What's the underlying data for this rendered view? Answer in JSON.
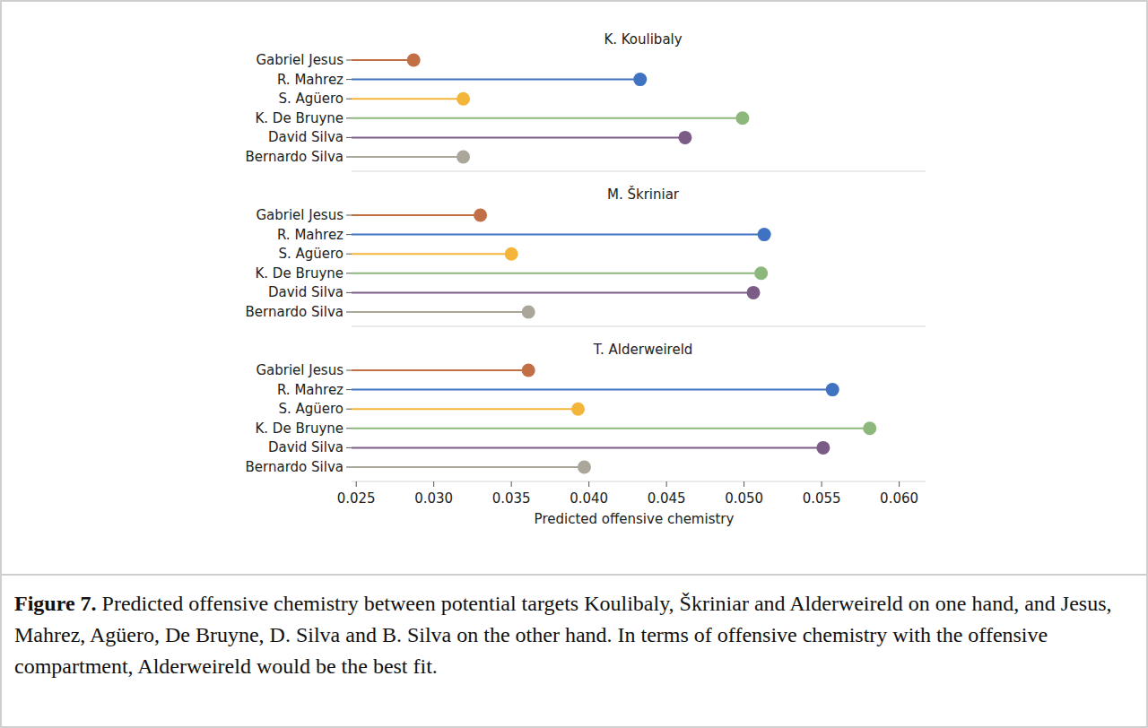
{
  "chart_data": [
    {
      "type": "lollipop",
      "title": "K. Koulibaly",
      "orientation": "horizontal",
      "categories": [
        "Gabriel Jesus",
        "R. Mahrez",
        "S. Agüero",
        "K. De Bruyne",
        "David Silva",
        "Bernardo Silva"
      ],
      "values": [
        0.0287,
        0.0433,
        0.0319,
        0.0499,
        0.0462,
        0.0319
      ],
      "colors": [
        "#c06f47",
        "#3f72c0",
        "#f3b63a",
        "#8cb87c",
        "#7b5c86",
        "#aaa699"
      ],
      "xlim": [
        0.0247,
        0.0617
      ],
      "tick_labels": "y"
    },
    {
      "type": "lollipop",
      "title": "M. Škriniar",
      "orientation": "horizontal",
      "categories": [
        "Gabriel Jesus",
        "R. Mahrez",
        "S. Agüero",
        "K. De Bruyne",
        "David Silva",
        "Bernardo Silva"
      ],
      "values": [
        0.033,
        0.0513,
        0.035,
        0.0511,
        0.0506,
        0.0361
      ],
      "colors": [
        "#c06f47",
        "#3f72c0",
        "#f3b63a",
        "#8cb87c",
        "#7b5c86",
        "#aaa699"
      ],
      "xlim": [
        0.0247,
        0.0617
      ],
      "tick_labels": "y"
    },
    {
      "type": "lollipop",
      "title": "T. Alderweireld",
      "orientation": "horizontal",
      "categories": [
        "Gabriel Jesus",
        "R. Mahrez",
        "S. Agüero",
        "K. De Bruyne",
        "David Silva",
        "Bernardo Silva"
      ],
      "values": [
        0.0361,
        0.0557,
        0.0393,
        0.0581,
        0.0551,
        0.0397
      ],
      "colors": [
        "#c06f47",
        "#3f72c0",
        "#f3b63a",
        "#8cb87c",
        "#7b5c86",
        "#aaa699"
      ],
      "xlim": [
        0.0247,
        0.0617
      ],
      "xticks": [
        0.025,
        {
          "value": 0.03,
          "label": "0.030"
        },
        0.035,
        {
          "value": 0.04,
          "label": "0.040"
        },
        0.045,
        {
          "value": 0.05,
          "label": "0.050"
        },
        0.055,
        {
          "value": 0.06,
          "label": "0.060"
        }
      ],
      "xlabel": "Predicted offensive chemistry"
    }
  ],
  "caption": {
    "label": "Figure 7.",
    "text": "Predicted offensive chemistry between potential targets Koulibaly, Škriniar and Alderweireld on one hand, and Jesus, Mahrez, Agüero, De Bruyne, D. Silva and B. Silva on the other hand. In terms of offensive chemistry with the offensive compartment, Alderweireld would be the best fit."
  }
}
